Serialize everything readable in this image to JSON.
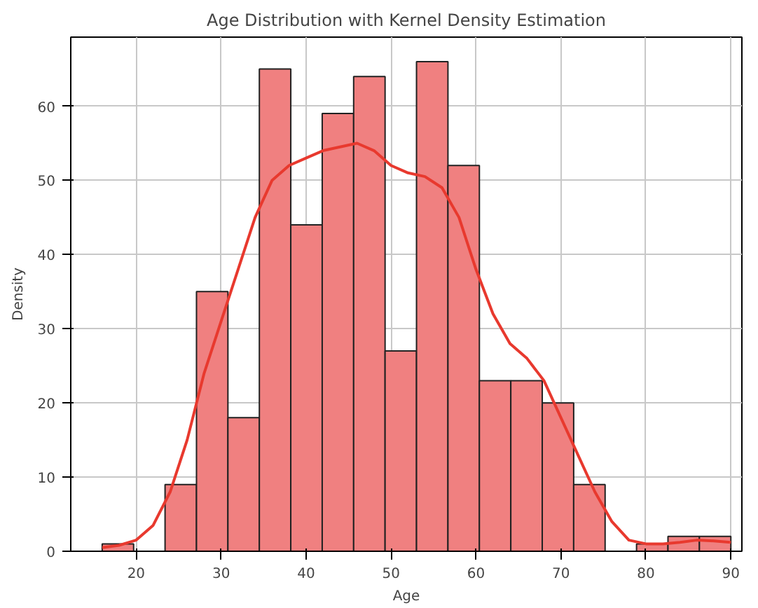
{
  "chart_data": {
    "type": "histogram",
    "title": "Age Distribution with Kernel Density Estimation",
    "xlabel": "Age",
    "ylabel": "Density",
    "bins": [
      16,
      19.7,
      23.4,
      27.1,
      30.8,
      34.5,
      38.2,
      41.9,
      45.6,
      49.3,
      53,
      56.7,
      60.4,
      64.1,
      67.8,
      71.5,
      75.2,
      78.9,
      82.6,
      86.3,
      90
    ],
    "values": [
      1,
      0,
      9,
      35,
      18,
      65,
      44,
      59,
      64,
      27,
      66,
      52,
      23,
      23,
      20,
      9,
      0,
      1,
      2,
      2
    ],
    "color": "#f08080",
    "series": [
      {
        "type": "line",
        "color": "#e8392e",
        "x": [
          16,
          18,
          20,
          22,
          24,
          26,
          28,
          30,
          32,
          34,
          36,
          38,
          40,
          42,
          44,
          46,
          48,
          50,
          52,
          54,
          56,
          58,
          60,
          62,
          64,
          66,
          68,
          70,
          72,
          74,
          76,
          78,
          80,
          82,
          84,
          86,
          88,
          90
        ],
        "values": [
          0.5,
          0.8,
          1.5,
          3.5,
          8,
          15,
          24,
          31,
          38,
          45,
          50,
          52,
          53,
          54,
          54.5,
          55,
          54,
          52,
          51,
          50.5,
          49,
          45,
          38,
          32,
          28,
          26,
          23,
          18,
          13,
          8,
          4,
          1.5,
          1,
          1,
          1.2,
          1.5,
          1.4,
          1.2
        ]
      }
    ],
    "xlim": [
      12.3,
      91.3
    ],
    "ylim": [
      0,
      69.3
    ],
    "xticks": [
      20,
      30,
      40,
      50,
      60,
      70,
      80,
      90
    ],
    "yticks": [
      0,
      10,
      20,
      30,
      40,
      50,
      60
    ],
    "grid": true
  }
}
